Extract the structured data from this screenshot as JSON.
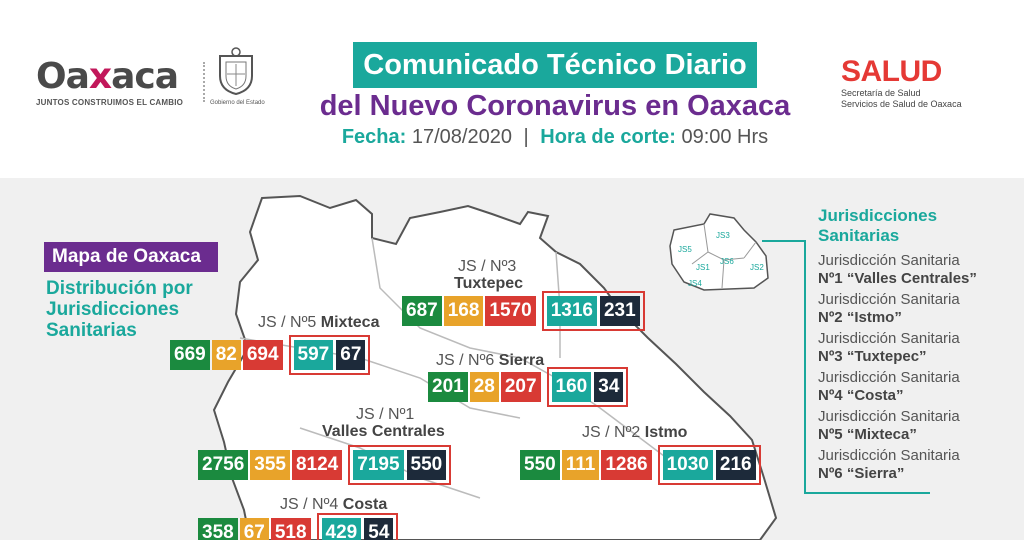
{
  "header": {
    "logo_word_pre": "Oa",
    "logo_word_x": "x",
    "logo_word_post": "aca",
    "logo_tagline": "JUNTOS CONSTRUIMOS EL CAMBIO",
    "seal_label": "Gobierno del Estado",
    "title": "Comunicado Técnico Diario",
    "subtitle": "del Nuevo Coronavirus en Oaxaca",
    "date_label": "Fecha:",
    "date_value": "17/08/2020",
    "separator": "|",
    "hour_label": "Hora de corte:",
    "hour_value": "09:00 Hrs",
    "salud_word": "SALUD",
    "salud_sub1": "Secretaría de Salud",
    "salud_sub2": "Servicios de Salud de Oaxaca"
  },
  "map": {
    "tag": "Mapa de Oaxaca",
    "dist_line1": "Distribución por",
    "dist_line2": "Jurisdicciones",
    "dist_line3": "Sanitarias"
  },
  "legend": {
    "title_line1": "Jurisdicciones",
    "title_line2": "Sanitarias",
    "items": [
      {
        "pre": "Jurisdicción Sanitaria",
        "name": "Nº1 “Valles Centrales”"
      },
      {
        "pre": "Jurisdicción Sanitaria",
        "name": "Nº2 “Istmo”"
      },
      {
        "pre": "Jurisdicción Sanitaria",
        "name": "Nº3 “Tuxtepec”"
      },
      {
        "pre": "Jurisdicción Sanitaria",
        "name": "Nº4 “Costa”"
      },
      {
        "pre": "Jurisdicción Sanitaria",
        "name": "Nº5 “Mixteca”"
      },
      {
        "pre": "Jurisdicción Sanitaria",
        "name": "Nº6 “Sierra”"
      }
    ],
    "inset_labels": [
      "JS5",
      "JS3",
      "JS6",
      "JS1",
      "JS2",
      "JS4"
    ]
  },
  "jurisdictions": {
    "tuxtepec": {
      "label": "JS / Nº3",
      "name": "Tuxtepec",
      "values": [
        "687",
        "168",
        "1570",
        "1316",
        "231"
      ]
    },
    "mixteca": {
      "label": "JS / Nº5",
      "name": "Mixteca",
      "values": [
        "669",
        "82",
        "694",
        "597",
        "67"
      ]
    },
    "sierra": {
      "label": "JS / Nº6",
      "name": "Sierra",
      "values": [
        "201",
        "28",
        "207",
        "160",
        "34"
      ]
    },
    "valles": {
      "label": "JS / Nº1",
      "name": "Valles Centrales",
      "values": [
        "2756",
        "355",
        "8124",
        "7195",
        "550"
      ]
    },
    "istmo": {
      "label": "JS / Nº2",
      "name": "Istmo",
      "values": [
        "550",
        "111",
        "1286",
        "1030",
        "216"
      ]
    },
    "costa": {
      "label": "JS / Nº4",
      "name": "Costa",
      "values": [
        "358",
        "67",
        "518",
        "429",
        "54"
      ]
    }
  },
  "colors": {
    "teal": "#1aa89c",
    "purple": "#6b2c8f",
    "green": "#1b8a3f",
    "yellow": "#e8a32a",
    "red": "#d83a34",
    "navy": "#1d2a3a"
  }
}
